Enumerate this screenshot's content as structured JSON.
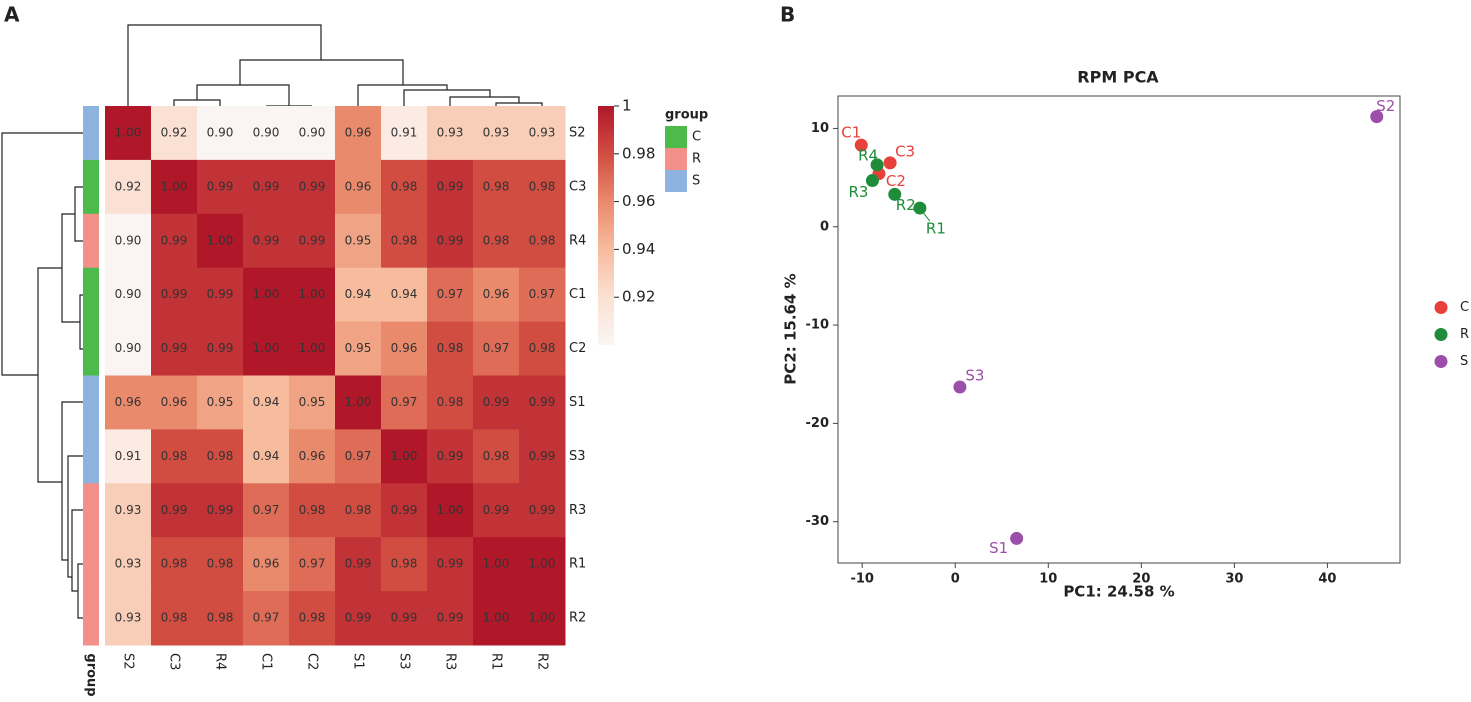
{
  "chart_data": [
    {
      "type": "heatmap",
      "panel_label": "A",
      "rows": [
        "S2",
        "C3",
        "R4",
        "C1",
        "C2",
        "S1",
        "S3",
        "R3",
        "R1",
        "R2"
      ],
      "columns": [
        "S2",
        "C3",
        "R4",
        "C1",
        "C2",
        "S1",
        "S3",
        "R3",
        "R1",
        "R2"
      ],
      "values": [
        [
          1.0,
          0.92,
          0.9,
          0.9,
          0.9,
          0.96,
          0.91,
          0.93,
          0.93,
          0.93
        ],
        [
          0.92,
          1.0,
          0.99,
          0.99,
          0.99,
          0.96,
          0.98,
          0.99,
          0.98,
          0.98
        ],
        [
          0.9,
          0.99,
          1.0,
          0.99,
          0.99,
          0.95,
          0.98,
          0.99,
          0.98,
          0.98
        ],
        [
          0.9,
          0.99,
          0.99,
          1.0,
          1.0,
          0.94,
          0.94,
          0.97,
          0.96,
          0.97
        ],
        [
          0.9,
          0.99,
          0.99,
          1.0,
          1.0,
          0.95,
          0.96,
          0.98,
          0.97,
          0.98
        ],
        [
          0.96,
          0.96,
          0.95,
          0.94,
          0.95,
          1.0,
          0.97,
          0.98,
          0.99,
          0.99
        ],
        [
          0.91,
          0.98,
          0.98,
          0.94,
          0.96,
          0.97,
          1.0,
          0.99,
          0.98,
          0.99
        ],
        [
          0.93,
          0.99,
          0.99,
          0.97,
          0.98,
          0.98,
          0.99,
          1.0,
          0.99,
          0.99
        ],
        [
          0.93,
          0.98,
          0.98,
          0.96,
          0.97,
          0.99,
          0.98,
          0.99,
          1.0,
          1.0
        ],
        [
          0.93,
          0.98,
          0.98,
          0.97,
          0.98,
          0.99,
          0.99,
          0.99,
          1.0,
          1.0
        ]
      ],
      "value_labels": [
        [
          "1.00",
          "0.92",
          "0.90",
          "0.90",
          "0.90",
          "0.96",
          "0.91",
          "0.93",
          "0.93",
          "0.93"
        ],
        [
          "0.92",
          "1.00",
          "0.99",
          "0.99",
          "0.99",
          "0.96",
          "0.98",
          "0.99",
          "0.98",
          "0.98"
        ],
        [
          "0.90",
          "0.99",
          "1.00",
          "0.99",
          "0.99",
          "0.95",
          "0.98",
          "0.99",
          "0.98",
          "0.98"
        ],
        [
          "0.90",
          "0.99",
          "0.99",
          "1.00",
          "1.00",
          "0.94",
          "0.94",
          "0.97",
          "0.96",
          "0.97"
        ],
        [
          "0.90",
          "0.99",
          "0.99",
          "1.00",
          "1.00",
          "0.95",
          "0.96",
          "0.98",
          "0.97",
          "0.98"
        ],
        [
          "0.96",
          "0.96",
          "0.95",
          "0.94",
          "0.95",
          "1.00",
          "0.97",
          "0.98",
          "0.99",
          "0.99"
        ],
        [
          "0.91",
          "0.98",
          "0.98",
          "0.94",
          "0.96",
          "0.97",
          "1.00",
          "0.99",
          "0.98",
          "0.99"
        ],
        [
          "0.93",
          "0.99",
          "0.99",
          "0.97",
          "0.98",
          "0.98",
          "0.99",
          "1.00",
          "0.99",
          "0.99"
        ],
        [
          "0.93",
          "0.98",
          "0.98",
          "0.96",
          "0.97",
          "0.99",
          "0.98",
          "0.99",
          "1.00",
          "1.00"
        ],
        [
          "0.93",
          "0.98",
          "0.98",
          "0.97",
          "0.98",
          "0.99",
          "0.99",
          "0.99",
          "1.00",
          "1.00"
        ]
      ],
      "row_groups": [
        "S",
        "C",
        "R",
        "C",
        "C",
        "S",
        "S",
        "R",
        "R",
        "R"
      ],
      "group_label": "group",
      "groups": [
        {
          "name": "C",
          "color": "#4cbb4c"
        },
        {
          "name": "R",
          "color": "#f4908a"
        },
        {
          "name": "S",
          "color": "#8fb3e0"
        }
      ],
      "clim": [
        0.9,
        1
      ],
      "cticks": [
        1,
        0.98,
        0.96,
        0.94,
        0.92
      ],
      "colorscale": [
        [
          0.9,
          "#faf5f3"
        ],
        [
          0.92,
          "#fbe1d3"
        ],
        [
          0.94,
          "#f7bb9e"
        ],
        [
          0.96,
          "#ea8a6c"
        ],
        [
          0.98,
          "#d14d42"
        ],
        [
          1,
          "#b0182a"
        ]
      ]
    },
    {
      "type": "scatter",
      "panel_label": "B",
      "title": "RPM PCA",
      "xlabel": "PC1:  24.58 %",
      "ylabel": "PC2:  15.64 %",
      "xlim": [
        -12.6,
        47.8
      ],
      "ylim": [
        -34.2,
        13.3
      ],
      "xticks": [
        -10,
        0,
        10,
        20,
        30,
        40
      ],
      "yticks": [
        10,
        0,
        -10,
        -20,
        -30
      ],
      "legend": "center right",
      "series": [
        {
          "name": "C",
          "color": "#e8413c",
          "x": [
            -10.1,
            -7.0,
            -8.2
          ],
          "y": [
            8.3,
            6.5,
            5.4
          ],
          "labels": [
            "C1",
            "C3",
            "C2"
          ]
        },
        {
          "name": "R",
          "color": "#1e8c3a",
          "x": [
            -8.4,
            -8.9,
            -6.5,
            -3.8
          ],
          "y": [
            6.3,
            4.7,
            3.3,
            1.9
          ],
          "labels": [
            "R4",
            "R3",
            "R2",
            "R1"
          ]
        },
        {
          "name": "S",
          "color": "#9b4fa8",
          "x": [
            45.3,
            0.5,
            6.6
          ],
          "y": [
            11.2,
            -16.3,
            -31.7
          ],
          "labels": [
            "S2",
            "S3",
            "S1"
          ]
        }
      ]
    }
  ]
}
